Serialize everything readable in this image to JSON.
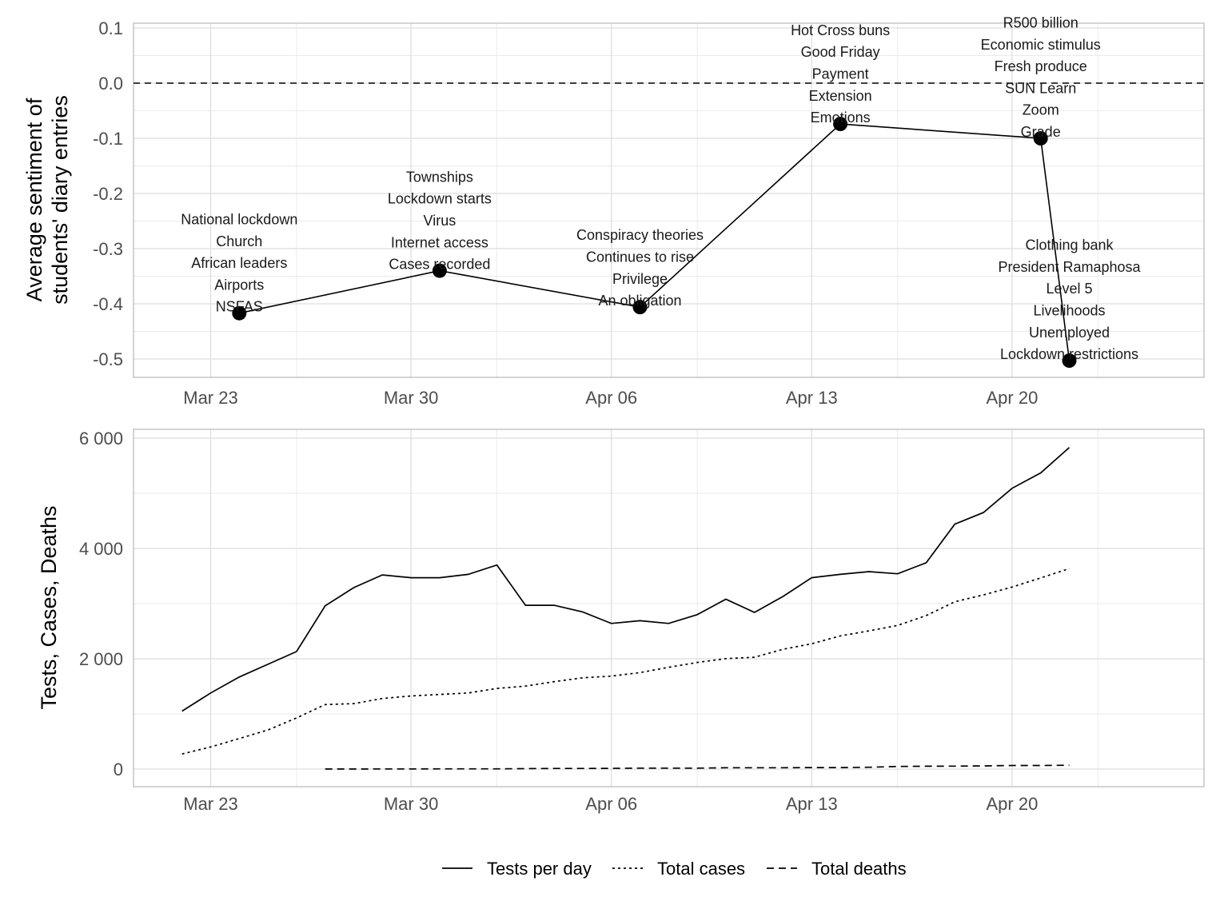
{
  "chart_data": [
    {
      "type": "line",
      "title": "",
      "xlabel": "",
      "ylabel": "Average sentiment of\nstudents' diary entries",
      "x_tick_labels": [
        "Mar 23",
        "Mar 30",
        "Apr 06",
        "Apr 13",
        "Apr 20"
      ],
      "y_tick_labels": [
        "0.1",
        "0.0",
        "-0.1",
        "-0.2",
        "-0.3",
        "-0.4",
        "-0.5"
      ],
      "y_ticks": [
        0.1,
        0.0,
        -0.1,
        -0.2,
        -0.3,
        -0.4,
        -0.5
      ],
      "ylim": [
        -0.53,
        0.11
      ],
      "reference_line": 0.0,
      "grid": true,
      "points": [
        {
          "date": "2020-03-24",
          "value": -0.417,
          "labels": [
            "National lockdown",
            "Church",
            "African leaders",
            "Airports",
            "NSFAS"
          ]
        },
        {
          "date": "2020-03-31",
          "value": -0.34,
          "labels": [
            "Townships",
            "Lockdown starts",
            "Virus",
            "Internet access",
            "Cases recorded"
          ]
        },
        {
          "date": "2020-04-07",
          "value": -0.406,
          "labels": [
            "Conspiracy theories",
            "Continues to rise",
            "Privilege",
            "An obligation"
          ]
        },
        {
          "date": "2020-04-14",
          "value": -0.074,
          "labels": [
            "Hot Cross buns",
            "Good Friday",
            "Payment",
            "Extension",
            "Emotions"
          ]
        },
        {
          "date": "2020-04-21",
          "value": -0.1,
          "labels": [
            "R500 billion",
            "Economic stimulus",
            "Fresh produce",
            "SUN Learn",
            "Zoom",
            "Grade"
          ]
        },
        {
          "date": "2020-04-22",
          "value": -0.503,
          "labels": [
            "Clothing bank",
            "President Ramaphosa",
            "Level 5",
            "Livelihoods",
            "Unemployed",
            "Lockdown restrictions"
          ]
        }
      ]
    },
    {
      "type": "line",
      "title": "",
      "xlabel": "",
      "ylabel": "Tests, Cases, Deaths",
      "x_tick_labels": [
        "Mar 23",
        "Mar 30",
        "Apr 06",
        "Apr 13",
        "Apr 20"
      ],
      "y_tick_labels": [
        "0",
        "2 000",
        "4 000",
        "6 000"
      ],
      "y_ticks": [
        0,
        2000,
        4000,
        6000
      ],
      "ylim": [
        -330,
        6120
      ],
      "grid": true,
      "legend_position": "bottom",
      "series": [
        {
          "name": "Tests per day",
          "linetype": "solid",
          "x": [
            "2020-03-22",
            "2020-03-23",
            "2020-03-24",
            "2020-03-25",
            "2020-03-26",
            "2020-03-27",
            "2020-03-28",
            "2020-03-29",
            "2020-03-30",
            "2020-03-31",
            "2020-04-01",
            "2020-04-02",
            "2020-04-03",
            "2020-04-04",
            "2020-04-05",
            "2020-04-06",
            "2020-04-07",
            "2020-04-08",
            "2020-04-09",
            "2020-04-10",
            "2020-04-11",
            "2020-04-12",
            "2020-04-13",
            "2020-04-14",
            "2020-04-15",
            "2020-04-16",
            "2020-04-17",
            "2020-04-18",
            "2020-04-19",
            "2020-04-20",
            "2020-04-21",
            "2020-04-22"
          ],
          "values": [
            1050,
            1380,
            1670,
            1900,
            2130,
            2960,
            3290,
            3520,
            3470,
            3470,
            3530,
            3700,
            2970,
            2970,
            2850,
            2640,
            2690,
            2640,
            2800,
            3080,
            2840,
            3130,
            3470,
            3530,
            3580,
            3540,
            3740,
            4440,
            4650,
            5090,
            5370,
            5830
          ]
        },
        {
          "name": "Total cases",
          "linetype": "dotted",
          "x": [
            "2020-03-22",
            "2020-03-23",
            "2020-03-24",
            "2020-03-25",
            "2020-03-26",
            "2020-03-27",
            "2020-03-28",
            "2020-03-29",
            "2020-03-30",
            "2020-03-31",
            "2020-04-01",
            "2020-04-02",
            "2020-04-03",
            "2020-04-04",
            "2020-04-05",
            "2020-04-06",
            "2020-04-07",
            "2020-04-08",
            "2020-04-09",
            "2020-04-10",
            "2020-04-11",
            "2020-04-12",
            "2020-04-13",
            "2020-04-14",
            "2020-04-15",
            "2020-04-16",
            "2020-04-17",
            "2020-04-18",
            "2020-04-19",
            "2020-04-20",
            "2020-04-21",
            "2020-04-22"
          ],
          "values": [
            274,
            402,
            554,
            709,
            927,
            1170,
            1187,
            1280,
            1326,
            1353,
            1380,
            1462,
            1505,
            1585,
            1655,
            1686,
            1749,
            1845,
            1934,
            2003,
            2028,
            2173,
            2272,
            2415,
            2506,
            2605,
            2783,
            3034,
            3158,
            3300,
            3465,
            3635
          ]
        },
        {
          "name": "Total deaths",
          "linetype": "dashed",
          "x": [
            "2020-03-27",
            "2020-03-28",
            "2020-03-29",
            "2020-03-30",
            "2020-03-31",
            "2020-04-01",
            "2020-04-02",
            "2020-04-03",
            "2020-04-04",
            "2020-04-05",
            "2020-04-06",
            "2020-04-07",
            "2020-04-08",
            "2020-04-09",
            "2020-04-10",
            "2020-04-11",
            "2020-04-12",
            "2020-04-13",
            "2020-04-14",
            "2020-04-15",
            "2020-04-16",
            "2020-04-17",
            "2020-04-18",
            "2020-04-19",
            "2020-04-20",
            "2020-04-21",
            "2020-04-22"
          ],
          "values": [
            1,
            2,
            3,
            3,
            5,
            5,
            5,
            9,
            11,
            12,
            13,
            18,
            18,
            18,
            24,
            25,
            25,
            27,
            27,
            34,
            48,
            52,
            54,
            58,
            65,
            65,
            69
          ]
        }
      ]
    }
  ]
}
